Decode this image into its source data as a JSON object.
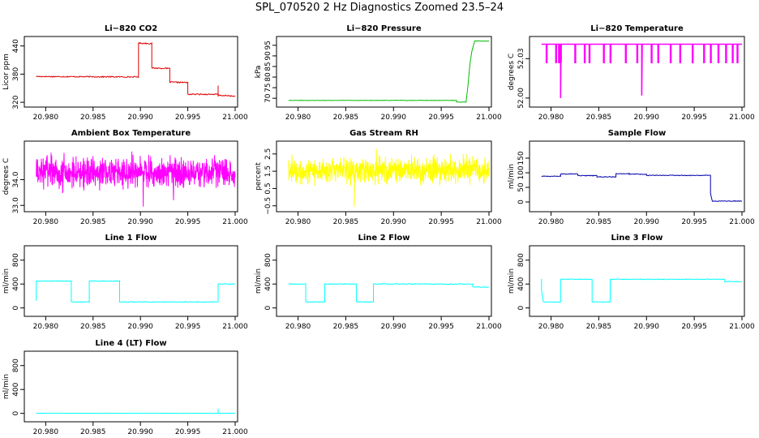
{
  "figure_title": "SPL_070520  2 Hz Diagnostics Zoomed 23.5–24",
  "chart_data": [
    {
      "id": "co2",
      "type": "line",
      "title": "Li−820 CO2",
      "ylabel": "Licor ppm",
      "xlim": [
        20.978,
        21.0
      ],
      "ylim": [
        315,
        455
      ],
      "xticks": [
        20.98,
        20.985,
        20.99,
        20.995,
        21.0
      ],
      "xtick_labels": [
        "20.980",
        "20.985",
        "20.990",
        "20.995",
        "21.000"
      ],
      "yticks": [
        320,
        380,
        440
      ],
      "ytick_labels": [
        "320",
        "380",
        "440"
      ],
      "series": [
        {
          "color": "#e00000",
          "noise": 1.2,
          "x": [
            20.979,
            20.9898,
            20.9898,
            20.9912,
            20.9912,
            20.9931,
            20.9931,
            20.995,
            20.995,
            20.9982,
            20.9982,
            20.9982,
            20.9982,
            21.0
          ],
          "y": [
            375,
            374,
            446,
            445,
            393,
            392,
            363,
            362,
            337,
            337,
            355,
            332,
            335,
            333
          ]
        }
      ]
    },
    {
      "id": "pressure",
      "type": "line",
      "title": "Li−820 Pressure",
      "ylabel": "kPa",
      "xlim": [
        20.978,
        21.0
      ],
      "ylim": [
        67,
        98
      ],
      "xticks": [
        20.98,
        20.985,
        20.99,
        20.995,
        21.0
      ],
      "xtick_labels": [
        "20.980",
        "20.985",
        "20.990",
        "20.995",
        "21.000"
      ],
      "yticks": [
        70,
        75,
        80,
        85,
        90,
        95
      ],
      "ytick_labels": [
        "70",
        "75",
        "80",
        "85",
        "90",
        "95"
      ],
      "series": [
        {
          "color": "#00bb00",
          "noise": 0.1,
          "x": [
            20.979,
            20.9966,
            20.9966,
            20.9976,
            20.9978,
            20.998,
            20.9982,
            20.9985,
            21.0
          ],
          "y": [
            69,
            69,
            68.2,
            68.2,
            76,
            86,
            92,
            97,
            97
          ]
        }
      ]
    },
    {
      "id": "licor_temp",
      "type": "line",
      "title": "Li−820 Temperature",
      "ylabel": "degrees C",
      "xlim": [
        20.978,
        21.0
      ],
      "ylim": [
        51.995,
        52.045
      ],
      "xticks": [
        20.98,
        20.985,
        20.99,
        20.995,
        21.0
      ],
      "xtick_labels": [
        "20.980",
        "20.985",
        "20.990",
        "20.995",
        "21.000"
      ],
      "yticks": [
        52.0,
        52.03
      ],
      "ytick_labels": [
        "52.00",
        "52.03"
      ],
      "series": [
        {
          "color": "#ff00ff",
          "baseline": 52.041,
          "low": 52.027,
          "spikes": [
            20.9795,
            20.9805,
            20.9808,
            20.981,
            20.9825,
            20.9835,
            20.984,
            20.9855,
            20.9862,
            20.9878,
            20.989,
            20.9905,
            20.9912,
            20.9925,
            20.9935,
            20.9948,
            20.996,
            20.9967,
            20.9975,
            20.9983,
            20.999,
            20.9995
          ],
          "outliers": [
            [
              20.981,
              52.0
            ],
            [
              20.9895,
              52.002
            ]
          ]
        }
      ]
    },
    {
      "id": "ambient_temp",
      "type": "line",
      "title": "Ambient Box Temperature",
      "ylabel": "degrees C",
      "xlim": [
        20.978,
        21.0
      ],
      "ylim": [
        32.85,
        35.4
      ],
      "xticks": [
        20.98,
        20.985,
        20.99,
        20.995,
        21.0
      ],
      "xtick_labels": [
        "20.980",
        "20.985",
        "20.990",
        "20.995",
        "21.000"
      ],
      "yticks": [
        33.0,
        34.0
      ],
      "ytick_labels": [
        "33.0",
        "34.0"
      ],
      "series": [
        {
          "color": "#ff00ff",
          "mean": 34.3,
          "spread": 0.45,
          "outliers": [
            [
              20.9903,
              32.95
            ],
            [
              20.9935,
              33.2
            ],
            [
              20.9818,
              33.5
            ]
          ]
        }
      ]
    },
    {
      "id": "rh",
      "type": "line",
      "title": "Gas Stream RH",
      "ylabel": "percent",
      "xlim": [
        20.978,
        21.0
      ],
      "ylim": [
        -0.7,
        3.1
      ],
      "xticks": [
        20.98,
        20.985,
        20.99,
        20.995,
        21.0
      ],
      "xtick_labels": [
        "20.980",
        "20.985",
        "20.990",
        "20.995",
        "21.000"
      ],
      "yticks": [
        -0.5,
        0.5,
        1.5,
        2.5
      ],
      "ytick_labels": [
        "−0.5",
        "0.5",
        "1.5",
        "2.5"
      ],
      "series": [
        {
          "color": "#ffff00",
          "mean": 1.55,
          "spread": 0.55,
          "outliers": [
            [
              20.9859,
              -0.55
            ],
            [
              20.9882,
              2.8
            ],
            [
              20.9973,
              2.5
            ]
          ]
        }
      ]
    },
    {
      "id": "sample_flow",
      "type": "line",
      "title": "Sample Flow",
      "ylabel": "ml/min",
      "xlim": [
        20.978,
        21.0
      ],
      "ylim": [
        -25,
        200
      ],
      "xticks": [
        20.98,
        20.985,
        20.99,
        20.995,
        21.0
      ],
      "xtick_labels": [
        "20.980",
        "20.985",
        "20.990",
        "20.995",
        "21.000"
      ],
      "yticks": [
        0,
        50,
        100,
        150
      ],
      "ytick_labels": [
        "0",
        "50",
        "100",
        "150"
      ],
      "series": [
        {
          "color": "#0000aa",
          "noise": 1.2,
          "x": [
            20.979,
            20.981,
            20.981,
            20.9828,
            20.9828,
            20.9848,
            20.9848,
            20.9868,
            20.9868,
            20.9882,
            20.9882,
            20.99,
            20.99,
            20.9967,
            20.9967,
            20.9969,
            21.0
          ],
          "y": [
            88,
            88,
            96,
            96,
            90,
            90,
            86,
            86,
            97,
            97,
            95,
            95,
            91,
            91,
            30,
            3,
            3
          ]
        }
      ]
    },
    {
      "id": "line1",
      "type": "line",
      "title": "Line 1 Flow",
      "ylabel": "ml/min",
      "xlim": [
        20.978,
        21.0
      ],
      "ylim": [
        -100,
        1000
      ],
      "xticks": [
        20.98,
        20.985,
        20.99,
        20.995,
        21.0
      ],
      "xtick_labels": [
        "20.980",
        "20.985",
        "20.990",
        "20.995",
        "21.000"
      ],
      "yticks": [
        0,
        400,
        800
      ],
      "ytick_labels": [
        "0",
        "400",
        "800"
      ],
      "series": [
        {
          "color": "#00ffff",
          "noise": 6,
          "x": [
            20.979,
            20.979,
            20.9827,
            20.9827,
            20.9846,
            20.9846,
            20.9878,
            20.9878,
            20.9982,
            20.9982,
            21.0
          ],
          "y": [
            120,
            450,
            450,
            100,
            100,
            450,
            450,
            100,
            100,
            400,
            400
          ]
        }
      ]
    },
    {
      "id": "line2",
      "type": "line",
      "title": "Line 2 Flow",
      "ylabel": "ml/min",
      "xlim": [
        20.978,
        21.0
      ],
      "ylim": [
        -100,
        1000
      ],
      "xticks": [
        20.98,
        20.985,
        20.99,
        20.995,
        21.0
      ],
      "xtick_labels": [
        "20.980",
        "20.985",
        "20.990",
        "20.995",
        "21.000"
      ],
      "yticks": [
        0,
        400,
        800
      ],
      "ytick_labels": [
        "0",
        "400",
        "800"
      ],
      "series": [
        {
          "color": "#00ffff",
          "noise": 6,
          "x": [
            20.979,
            20.9808,
            20.9808,
            20.9828,
            20.9828,
            20.9861,
            20.9861,
            20.9879,
            20.9879,
            20.9983,
            20.9983,
            21.0
          ],
          "y": [
            400,
            400,
            100,
            100,
            400,
            400,
            100,
            100,
            400,
            400,
            350,
            350
          ]
        }
      ]
    },
    {
      "id": "line3",
      "type": "line",
      "title": "Line 3 Flow",
      "ylabel": "ml/min",
      "xlim": [
        20.978,
        21.0
      ],
      "ylim": [
        -100,
        1000
      ],
      "xticks": [
        20.98,
        20.985,
        20.99,
        20.995,
        21.0
      ],
      "xtick_labels": [
        "20.980",
        "20.985",
        "20.990",
        "20.995",
        "21.000"
      ],
      "yticks": [
        0,
        400,
        800
      ],
      "ytick_labels": [
        "0",
        "400",
        "800"
      ],
      "series": [
        {
          "color": "#00ffff",
          "noise": 6,
          "x": [
            20.979,
            20.979,
            20.9792,
            20.981,
            20.981,
            20.9843,
            20.9843,
            20.9862,
            20.9862,
            20.9982,
            20.9982,
            21.0
          ],
          "y": [
            480,
            300,
            100,
            100,
            480,
            480,
            100,
            100,
            480,
            480,
            440,
            440
          ]
        }
      ]
    },
    {
      "id": "line4",
      "type": "line",
      "title": "Line 4 (LT) Flow",
      "ylabel": "ml/min",
      "xlim": [
        20.978,
        21.0
      ],
      "ylim": [
        -100,
        1000
      ],
      "xticks": [
        20.98,
        20.985,
        20.99,
        20.995,
        21.0
      ],
      "xtick_labels": [
        "20.980",
        "20.985",
        "20.990",
        "20.995",
        "21.000"
      ],
      "yticks": [
        0,
        400,
        800
      ],
      "ytick_labels": [
        "0",
        "400",
        "800"
      ],
      "series": [
        {
          "color": "#00ffff",
          "noise": 2,
          "x": [
            20.979,
            20.9982,
            20.9982,
            20.9982,
            20.9982,
            21.0
          ],
          "y": [
            2,
            2,
            80,
            10,
            2,
            2
          ]
        }
      ]
    }
  ]
}
